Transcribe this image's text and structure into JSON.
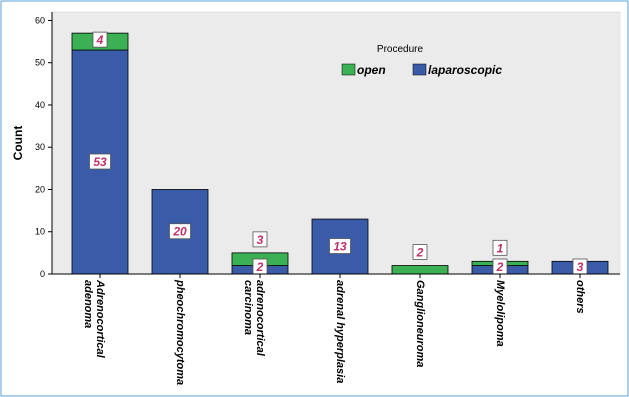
{
  "chart_data": {
    "type": "bar",
    "stacked": true,
    "ylabel": "Count",
    "ylim": [
      0,
      62
    ],
    "yticks": [
      0,
      10,
      20,
      30,
      40,
      50,
      60
    ],
    "grid": false,
    "legend": {
      "title": "Procedure",
      "placement": "top-right"
    },
    "categories": [
      [
        "Adrenocortical",
        "adenoma"
      ],
      [
        "pheochromocytoma"
      ],
      [
        "adrenocortical",
        "carcinoma"
      ],
      [
        "adrenal hyperplasia"
      ],
      [
        "Ganglioneuroma"
      ],
      [
        "Myelolipoma"
      ],
      [
        "others"
      ]
    ],
    "series": [
      {
        "name": "laparoscopic",
        "color": "#3a5ca8",
        "values": [
          53,
          20,
          2,
          13,
          0,
          2,
          3
        ]
      },
      {
        "name": "open",
        "color": "#3cb054",
        "values": [
          4,
          0,
          3,
          0,
          2,
          1,
          0
        ]
      }
    ]
  }
}
